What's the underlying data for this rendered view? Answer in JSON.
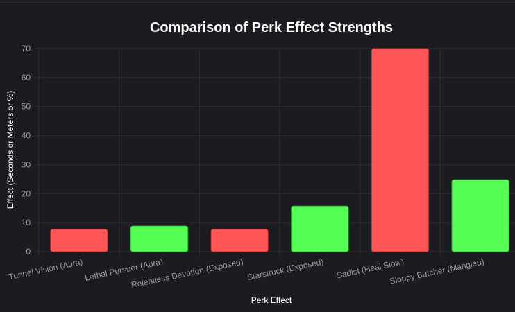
{
  "chart_data": {
    "type": "bar",
    "title": "Comparison of Perk Effect Strengths",
    "xlabel": "Perk Effect",
    "ylabel": "Effect (Seconds or Meters or %)",
    "categories": [
      "Tunnel Vision (Aura)",
      "Lethal Pursuer (Aura)",
      "Relentless Devotion (Exposed)",
      "Starstruck (Exposed)",
      "Sadist (Heal Slow)",
      "Sloppy Butcher (Mangled)"
    ],
    "values": [
      7.7,
      8.8,
      7.7,
      15.7,
      70,
      24.8
    ],
    "bar_colors": [
      "#ff5555",
      "#55ff55",
      "#ff5555",
      "#55ff55",
      "#ff5555",
      "#55ff55"
    ],
    "ylim": [
      0,
      70
    ],
    "yticks": [
      "0",
      "10",
      "20",
      "30",
      "40",
      "50",
      "60",
      "70"
    ],
    "grid": true,
    "legend": "none"
  },
  "colors": {
    "background": "#1b1c20",
    "grid": "#2e2f34",
    "text": "#ffffff",
    "tick": "#9a9a9a"
  }
}
